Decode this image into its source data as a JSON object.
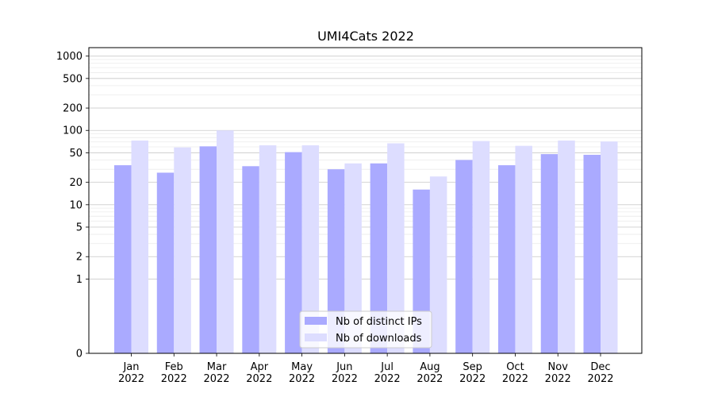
{
  "chart_data": {
    "type": "bar",
    "title": "UMI4Cats 2022",
    "xlabel": "",
    "ylabel": "",
    "yscale": "symlog",
    "ylim": [
      0,
      1300
    ],
    "grid": true,
    "legend_position": "bottom-center",
    "categories": [
      [
        "Jan",
        "2022"
      ],
      [
        "Feb",
        "2022"
      ],
      [
        "Mar",
        "2022"
      ],
      [
        "Apr",
        "2022"
      ],
      [
        "May",
        "2022"
      ],
      [
        "Jun",
        "2022"
      ],
      [
        "Jul",
        "2022"
      ],
      [
        "Aug",
        "2022"
      ],
      [
        "Sep",
        "2022"
      ],
      [
        "Oct",
        "2022"
      ],
      [
        "Nov",
        "2022"
      ],
      [
        "Dec",
        "2022"
      ]
    ],
    "yticks": [
      {
        "value": 0,
        "label": "0"
      },
      {
        "value": 1,
        "label": "1"
      },
      {
        "value": 2,
        "label": "2"
      },
      {
        "value": 5,
        "label": "5"
      },
      {
        "value": 10,
        "label": "10"
      },
      {
        "value": 20,
        "label": "20"
      },
      {
        "value": 50,
        "label": "50"
      },
      {
        "value": 100,
        "label": "100"
      },
      {
        "value": 200,
        "label": "200"
      },
      {
        "value": 500,
        "label": "500"
      },
      {
        "value": 1000,
        "label": "1000"
      }
    ],
    "series": [
      {
        "name": "Nb of distinct IPs",
        "color": "#aaaaff",
        "values": [
          34,
          27,
          61,
          33,
          51,
          30,
          36,
          16,
          40,
          34,
          48,
          47
        ]
      },
      {
        "name": "Nb of downloads",
        "color": "#ddddff",
        "values": [
          73,
          59,
          100,
          63,
          63,
          36,
          67,
          24,
          72,
          62,
          73,
          71
        ]
      }
    ]
  }
}
